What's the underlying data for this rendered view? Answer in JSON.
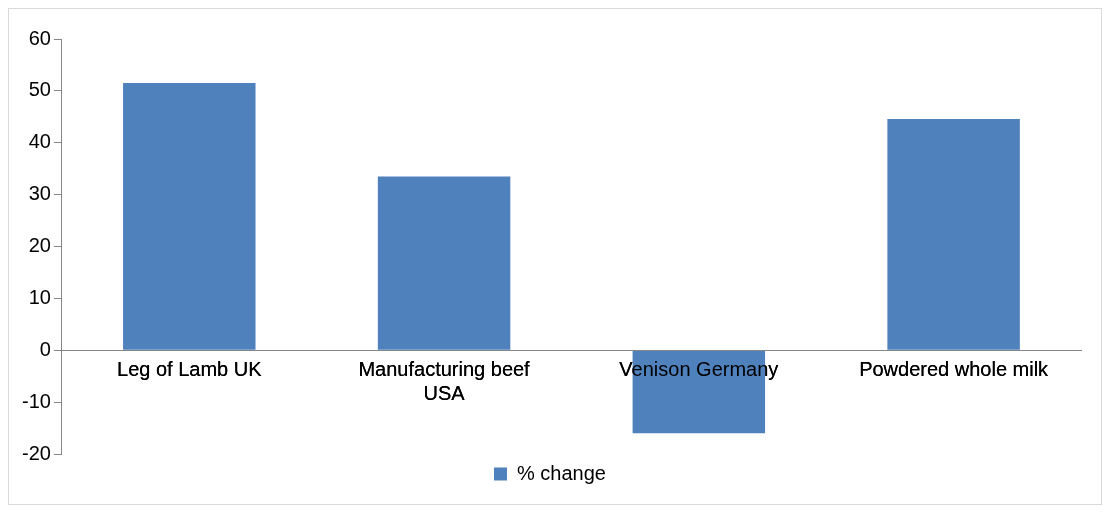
{
  "chart_data": {
    "type": "bar",
    "categories": [
      "Leg of Lamb UK",
      "Manufacturing beef USA",
      "Venison Germany",
      "Powdered whole milk"
    ],
    "series": [
      {
        "name": "% change",
        "color": "#4f81bd",
        "values": [
          51.5,
          33.5,
          -16,
          44.6
        ]
      }
    ],
    "ylim": [
      -20,
      60
    ],
    "yticks": [
      -20,
      -10,
      0,
      10,
      20,
      30,
      40,
      50,
      60
    ],
    "grid": false,
    "legend": "bottom"
  }
}
